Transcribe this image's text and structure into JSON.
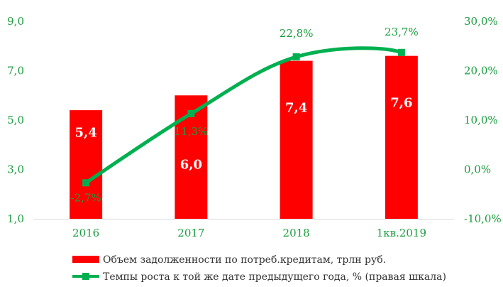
{
  "chart_data": {
    "type": "bar+line",
    "categories": [
      "2016",
      "2017",
      "2018",
      "1кв.2019"
    ],
    "series": [
      {
        "name": "Объем задолженности по потреб.кредитам, трлн руб.",
        "type": "bar",
        "axis": "left",
        "values": [
          5.4,
          6.0,
          7.4,
          7.6
        ],
        "labels": [
          "5,4",
          "6,0",
          "7,4",
          "7,6"
        ],
        "color": "#ff0000"
      },
      {
        "name": "Темпы роста к той же дате предыдущего года, % (правая шкала)",
        "type": "line",
        "axis": "right",
        "values": [
          -2.7,
          11.3,
          22.8,
          23.7
        ],
        "labels": [
          "-2,7%",
          "11,3%",
          "22,8%",
          "23,7%"
        ],
        "color": "#00b050"
      }
    ],
    "y_left": {
      "min": 1.0,
      "max": 9.0,
      "ticks": [
        1.0,
        3.0,
        5.0,
        7.0,
        9.0
      ],
      "tick_labels": [
        "1,0",
        "3,0",
        "5,0",
        "7,0",
        "9,0"
      ]
    },
    "y_right": {
      "min": -10.0,
      "max": 30.0,
      "ticks": [
        -10.0,
        0.0,
        10.0,
        20.0,
        30.0
      ],
      "tick_labels": [
        "-10,0%",
        "0,0%",
        "10,0%",
        "20,0%",
        "30,0%"
      ]
    },
    "title": "",
    "legend_position": "bottom",
    "grid": false
  }
}
